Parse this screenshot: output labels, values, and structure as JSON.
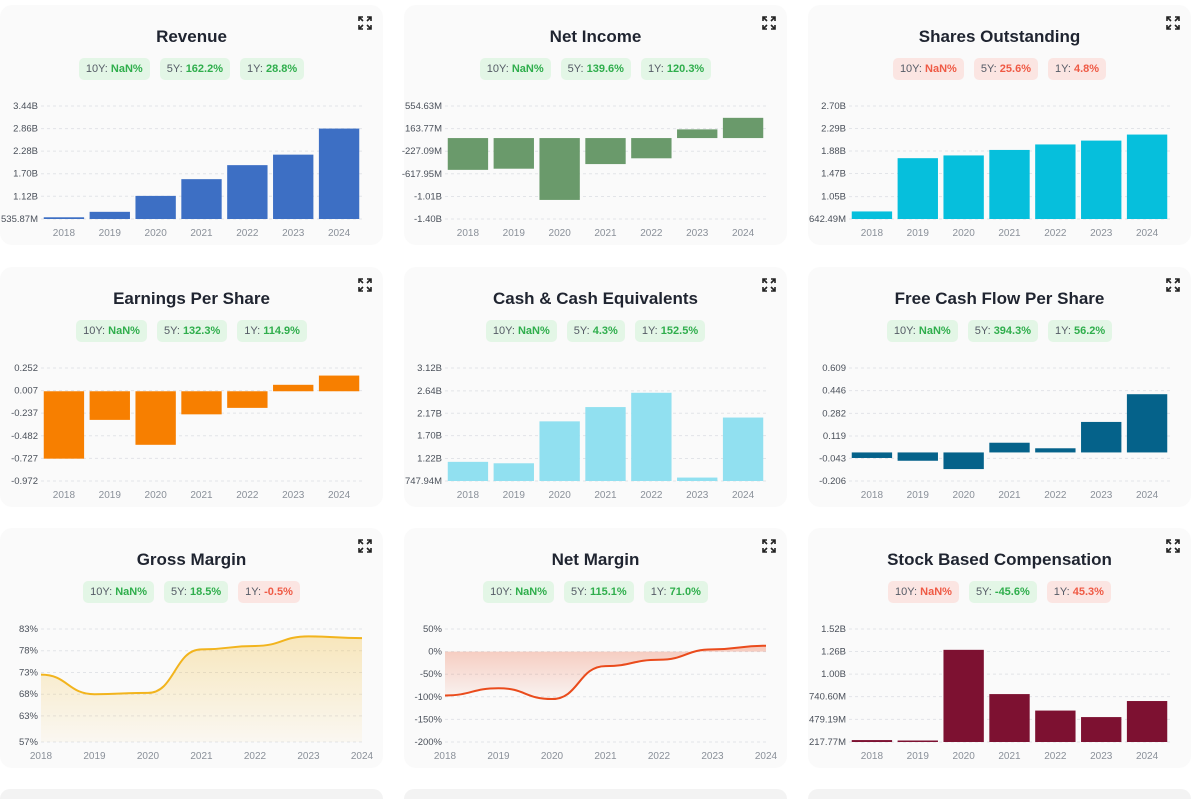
{
  "chart_data": [
    {
      "id": "revenue",
      "type": "bar",
      "title": "Revenue",
      "color": "#3d6fc4",
      "badges": [
        {
          "label": "10Y:",
          "value": "NaN%",
          "tone": "pos"
        },
        {
          "label": "5Y:",
          "value": "162.2%",
          "tone": "pos"
        },
        {
          "label": "1Y:",
          "value": "28.8%",
          "tone": "pos"
        }
      ],
      "categories": [
        "2018",
        "2019",
        "2020",
        "2021",
        "2022",
        "2023",
        "2024"
      ],
      "values": [
        580000000,
        720000000,
        1130000000,
        1560000000,
        1920000000,
        2190000000,
        2860000000
      ],
      "ylim": [
        535870000,
        3440000000
      ],
      "yticks": [
        535870000,
        1120000000,
        1700000000,
        2280000000,
        2860000000,
        3440000000
      ],
      "ytick_labels": [
        "535.87M",
        "1.12B",
        "1.70B",
        "2.28B",
        "2.86B",
        "3.44B"
      ]
    },
    {
      "id": "net-income",
      "type": "bar",
      "title": "Net Income",
      "color": "#6a9a6b",
      "badges": [
        {
          "label": "10Y:",
          "value": "NaN%",
          "tone": "pos"
        },
        {
          "label": "5Y:",
          "value": "139.6%",
          "tone": "pos"
        },
        {
          "label": "1Y:",
          "value": "120.3%",
          "tone": "pos"
        }
      ],
      "categories": [
        "2018",
        "2019",
        "2020",
        "2021",
        "2022",
        "2023",
        "2024"
      ],
      "values": [
        -550000000,
        -530000000,
        -1070000000,
        -450000000,
        -350000000,
        150000000,
        350000000
      ],
      "ylim": [
        -1400000000,
        554630000
      ],
      "yticks": [
        554630000,
        163770000,
        -227090000,
        -617950000,
        -1010000000,
        -1400000000
      ],
      "ytick_labels": [
        "554.63M",
        "163.77M",
        "-227.09M",
        "-617.95M",
        "-1.01B",
        "-1.40B"
      ]
    },
    {
      "id": "shares-outstanding",
      "type": "bar",
      "title": "Shares Outstanding",
      "color": "#06bfdc",
      "badges": [
        {
          "label": "10Y:",
          "value": "NaN%",
          "tone": "neg"
        },
        {
          "label": "5Y:",
          "value": "25.6%",
          "tone": "neg"
        },
        {
          "label": "1Y:",
          "value": "4.8%",
          "tone": "neg"
        }
      ],
      "categories": [
        "2018",
        "2019",
        "2020",
        "2021",
        "2022",
        "2023",
        "2024"
      ],
      "values": [
        780000000,
        1750000000,
        1800000000,
        1900000000,
        2000000000,
        2070000000,
        2180000000
      ],
      "ylim": [
        642490000,
        2700000000
      ],
      "yticks": [
        642490000,
        1050000000,
        1470000000,
        1880000000,
        2290000000,
        2700000000
      ],
      "ytick_labels": [
        "642.49M",
        "1.05B",
        "1.47B",
        "1.88B",
        "2.29B",
        "2.70B"
      ]
    },
    {
      "id": "eps",
      "type": "bar",
      "title": "Earnings Per Share",
      "color": "#f77f00",
      "badges": [
        {
          "label": "10Y:",
          "value": "NaN%",
          "tone": "pos"
        },
        {
          "label": "5Y:",
          "value": "132.3%",
          "tone": "pos"
        },
        {
          "label": "1Y:",
          "value": "114.9%",
          "tone": "pos"
        }
      ],
      "categories": [
        "2018",
        "2019",
        "2020",
        "2021",
        "2022",
        "2023",
        "2024"
      ],
      "values": [
        -0.73,
        -0.31,
        -0.58,
        -0.25,
        -0.18,
        0.07,
        0.17
      ],
      "ylim": [
        -0.972,
        0.252
      ],
      "yticks": [
        0.252,
        0.007,
        -0.237,
        -0.482,
        -0.727,
        -0.972
      ],
      "ytick_labels": [
        "0.252",
        "0.007",
        "-0.237",
        "-0.482",
        "-0.727",
        "-0.972"
      ]
    },
    {
      "id": "cash",
      "type": "bar",
      "title": "Cash & Cash Equivalents",
      "color": "#91e0f0",
      "badges": [
        {
          "label": "10Y:",
          "value": "NaN%",
          "tone": "pos"
        },
        {
          "label": "5Y:",
          "value": "4.3%",
          "tone": "pos"
        },
        {
          "label": "1Y:",
          "value": "152.5%",
          "tone": "pos"
        }
      ],
      "categories": [
        "2018",
        "2019",
        "2020",
        "2021",
        "2022",
        "2023",
        "2024"
      ],
      "values": [
        1150000000,
        1120000000,
        2000000000,
        2300000000,
        2600000000,
        820000000,
        2080000000
      ],
      "ylim": [
        747940000,
        3120000000
      ],
      "yticks": [
        747940000,
        1220000000,
        1700000000,
        2170000000,
        2640000000,
        3120000000
      ],
      "ytick_labels": [
        "747.94M",
        "1.22B",
        "1.70B",
        "2.17B",
        "2.64B",
        "3.12B"
      ]
    },
    {
      "id": "fcf-per-share",
      "type": "bar",
      "title": "Free Cash Flow Per Share",
      "color": "#05628a",
      "badges": [
        {
          "label": "10Y:",
          "value": "NaN%",
          "tone": "pos"
        },
        {
          "label": "5Y:",
          "value": "394.3%",
          "tone": "pos"
        },
        {
          "label": "1Y:",
          "value": "56.2%",
          "tone": "pos"
        }
      ],
      "categories": [
        "2018",
        "2019",
        "2020",
        "2021",
        "2022",
        "2023",
        "2024"
      ],
      "values": [
        -0.04,
        -0.06,
        -0.12,
        0.07,
        0.03,
        0.22,
        0.42
      ],
      "ylim": [
        -0.206,
        0.609
      ],
      "yticks": [
        0.609,
        0.446,
        0.282,
        0.119,
        -0.043,
        -0.206
      ],
      "ytick_labels": [
        "0.609",
        "0.446",
        "0.282",
        "0.119",
        "-0.043",
        "-0.206"
      ]
    },
    {
      "id": "gross-margin",
      "type": "area",
      "title": "Gross Margin",
      "color": "#f2b41d",
      "badges": [
        {
          "label": "10Y:",
          "value": "NaN%",
          "tone": "pos"
        },
        {
          "label": "5Y:",
          "value": "18.5%",
          "tone": "pos"
        },
        {
          "label": "1Y:",
          "value": "-0.5%",
          "tone": "neg"
        }
      ],
      "categories": [
        "2018",
        "2019",
        "2020",
        "2021",
        "2022",
        "2023",
        "2024"
      ],
      "values": [
        72.5,
        68,
        68.3,
        78.3,
        79.1,
        81.3,
        80.9
      ],
      "ylim": [
        57,
        83
      ],
      "yticks": [
        83,
        78,
        73,
        68,
        63,
        57
      ],
      "ytick_labels": [
        "83%",
        "78%",
        "73%",
        "68%",
        "63%",
        "57%"
      ]
    },
    {
      "id": "net-margin",
      "type": "area",
      "title": "Net Margin",
      "color": "#ea4b1c",
      "badges": [
        {
          "label": "10Y:",
          "value": "NaN%",
          "tone": "pos"
        },
        {
          "label": "5Y:",
          "value": "115.1%",
          "tone": "pos"
        },
        {
          "label": "1Y:",
          "value": "71.0%",
          "tone": "pos"
        }
      ],
      "categories": [
        "2018",
        "2019",
        "2020",
        "2021",
        "2022",
        "2023",
        "2024"
      ],
      "values": [
        -97,
        -81,
        -105,
        -32,
        -18,
        5,
        13
      ],
      "ylim": [
        -200,
        50
      ],
      "yticks": [
        50,
        0,
        -50,
        -100,
        -150,
        -200
      ],
      "ytick_labels": [
        "50%",
        "0%",
        "-50%",
        "-100%",
        "-150%",
        "-200%"
      ]
    },
    {
      "id": "sbc",
      "type": "bar",
      "title": "Stock Based Compensation",
      "color": "#7d1131",
      "badges": [
        {
          "label": "10Y:",
          "value": "NaN%",
          "tone": "neg"
        },
        {
          "label": "5Y:",
          "value": "-45.6%",
          "tone": "pos"
        },
        {
          "label": "1Y:",
          "value": "45.3%",
          "tone": "neg"
        }
      ],
      "categories": [
        "2018",
        "2019",
        "2020",
        "2021",
        "2022",
        "2023",
        "2024"
      ],
      "values": [
        240000000,
        235000000,
        1280000000,
        770000000,
        580000000,
        505000000,
        690000000
      ],
      "ylim": [
        217770000,
        1520000000
      ],
      "yticks": [
        217770000,
        479190000,
        740600000,
        1000000000,
        1260000000,
        1520000000
      ],
      "ytick_labels": [
        "217.77M",
        "479.19M",
        "740.60M",
        "1.00B",
        "1.26B",
        "1.52B"
      ]
    }
  ]
}
